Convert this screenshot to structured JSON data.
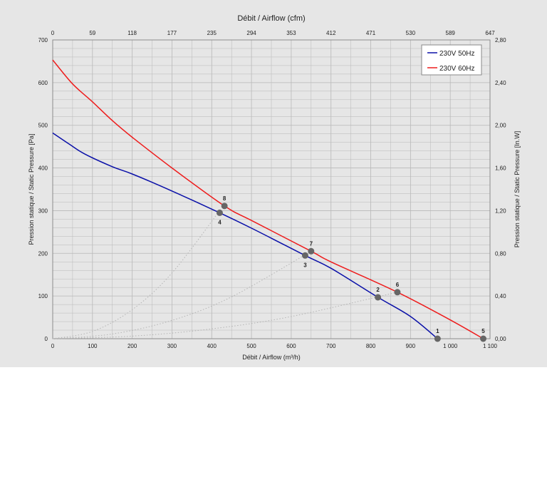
{
  "chart_data": {
    "type": "line",
    "x_bottom": {
      "label": "Débit / Airflow (m³/h)",
      "range": [
        0,
        1100
      ],
      "ticks": [
        0,
        100,
        200,
        300,
        400,
        500,
        600,
        700,
        800,
        900,
        1000,
        1100
      ],
      "tick_labels": [
        "0",
        "100",
        "200",
        "300",
        "400",
        "500",
        "600",
        "700",
        "800",
        "900",
        "1 000",
        "1 100"
      ]
    },
    "x_top": {
      "label": "Débit / Airflow (cfm)",
      "tick_labels": [
        "0",
        "59",
        "118",
        "177",
        "235",
        "294",
        "353",
        "412",
        "471",
        "530",
        "589",
        "647"
      ]
    },
    "y_left": {
      "label": "Pression statique / Static Pressure [Pa]",
      "range": [
        0,
        700
      ],
      "ticks": [
        0,
        100,
        200,
        300,
        400,
        500,
        600,
        700
      ],
      "tick_labels": [
        "0",
        "100",
        "200",
        "300",
        "400",
        "500",
        "600",
        "700"
      ]
    },
    "y_right": {
      "label": "Pression statique / Static Pressure [In.W]",
      "tick_labels": [
        "0,00",
        "0,40",
        "0,80",
        "1,20",
        "1,60",
        "2,00",
        "2,40",
        "2,80"
      ]
    },
    "grid": true,
    "legend_position": "top-right",
    "series": [
      {
        "name": "230V 50Hz",
        "color": "#0a10a8",
        "x": [
          0,
          40,
          80,
          150,
          200,
          300,
          420,
          500,
          635,
          700,
          818,
          900,
          968
        ],
        "y": [
          482,
          457,
          433,
          403,
          386,
          346,
          295,
          259,
          195,
          165,
          97,
          52,
          0
        ]
      },
      {
        "name": "230V 60Hz",
        "color": "#ee1c1c",
        "x": [
          0,
          50,
          100,
          150,
          200,
          300,
          432,
          500,
          650,
          700,
          867,
          1000,
          1083
        ],
        "y": [
          653,
          597,
          555,
          511,
          472,
          400,
          311,
          277,
          205,
          180,
          109,
          44,
          0
        ]
      }
    ],
    "operating_points": [
      {
        "label": "1",
        "x": 968,
        "y": 0
      },
      {
        "label": "2",
        "x": 818,
        "y": 97
      },
      {
        "label": "3",
        "x": 635,
        "y": 195
      },
      {
        "label": "4",
        "x": 420,
        "y": 295
      },
      {
        "label": "5",
        "x": 1083,
        "y": 0
      },
      {
        "label": "6",
        "x": 867,
        "y": 109
      },
      {
        "label": "7",
        "x": 650,
        "y": 205
      },
      {
        "label": "8",
        "x": 432,
        "y": 311
      }
    ],
    "system_curves": [
      {
        "x": [
          0,
          100,
          200,
          300,
          420
        ],
        "y": [
          0,
          17,
          68,
          154,
          300
        ]
      },
      {
        "x": [
          0,
          150,
          300,
          450,
          650
        ],
        "y": [
          0,
          11,
          43,
          98,
          205
        ]
      },
      {
        "x": [
          0,
          200,
          400,
          600,
          867
        ],
        "y": [
          0,
          6,
          23,
          52,
          109
        ]
      }
    ],
    "marker_color": "#666666",
    "system_curve_color": "#b4b4b4",
    "grid_color": "#b8b8b8",
    "frame_color": "#8c8c8c"
  }
}
